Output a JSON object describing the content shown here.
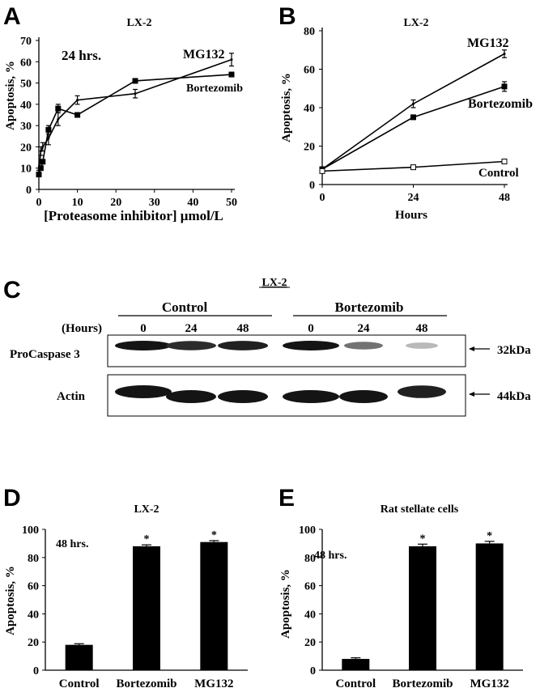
{
  "panels": {
    "A": {
      "letter": "A",
      "title": "LX-2",
      "time_label": "24 hrs."
    },
    "B": {
      "letter": "B",
      "title": "LX-2"
    },
    "C": {
      "letter": "C",
      "title": "LX-2",
      "group_labels": [
        "Control",
        "Bortezomib"
      ],
      "hours_label": "(Hours)",
      "lane_hours": [
        "0",
        "24",
        "48",
        "0",
        "24",
        "48"
      ],
      "rows": [
        {
          "label": "ProCaspase 3",
          "size": "32kDa",
          "intensity": [
            1.0,
            0.9,
            0.95,
            1.0,
            0.6,
            0.3
          ]
        },
        {
          "label": "Actin",
          "size": "44kDa",
          "intensity": [
            1.0,
            1.0,
            1.0,
            1.0,
            1.0,
            0.95
          ]
        }
      ]
    },
    "D": {
      "letter": "D",
      "title": "LX-2",
      "time_label": "48 hrs."
    },
    "E": {
      "letter": "E",
      "title": "Rat stellate cells",
      "time_label": "48 hrs."
    }
  },
  "chart_data": [
    {
      "id": "A",
      "type": "line",
      "title": "LX-2",
      "xlabel": "[Proteasome inhibitor] μmol/L",
      "ylabel": "Apoptosis, %",
      "xlim": [
        0,
        50
      ],
      "ylim": [
        0,
        70
      ],
      "xticks": [
        0,
        10,
        20,
        30,
        40,
        50
      ],
      "yticks": [
        0,
        10,
        20,
        30,
        40,
        50,
        60,
        70
      ],
      "series": [
        {
          "name": "MG132",
          "marker": "line",
          "x": [
            0,
            0.5,
            1,
            2.5,
            5,
            10,
            25,
            50
          ],
          "y": [
            8,
            18,
            20,
            24,
            33,
            42,
            45,
            61
          ],
          "err": [
            1,
            2,
            2,
            3,
            3,
            2,
            2,
            3
          ]
        },
        {
          "name": "Bortezomib",
          "marker": "square",
          "x": [
            0,
            0.5,
            1,
            2.5,
            5,
            10,
            25,
            50
          ],
          "y": [
            7,
            10,
            13,
            28,
            38,
            35,
            51,
            54
          ],
          "err": [
            1,
            1,
            1,
            2,
            2,
            1,
            1,
            1
          ]
        }
      ]
    },
    {
      "id": "B",
      "type": "line",
      "title": "LX-2",
      "xlabel": "Hours",
      "ylabel": "Apoptosis, %",
      "xlim": [
        0,
        48
      ],
      "ylim": [
        0,
        80
      ],
      "xticks": [
        0,
        24,
        48
      ],
      "yticks": [
        0,
        20,
        40,
        60,
        80
      ],
      "series": [
        {
          "name": "MG132",
          "marker": "line",
          "x": [
            0,
            24,
            48
          ],
          "y": [
            8,
            42,
            68
          ],
          "err": [
            1,
            2,
            2
          ]
        },
        {
          "name": "Bortezomib",
          "marker": "square",
          "x": [
            0,
            24,
            48
          ],
          "y": [
            8,
            35,
            51
          ],
          "err": [
            1,
            1,
            2.5
          ]
        },
        {
          "name": "Control",
          "marker": "open",
          "x": [
            0,
            24,
            48
          ],
          "y": [
            7,
            9,
            12
          ],
          "err": [
            0.5,
            1,
            0.5
          ]
        }
      ]
    },
    {
      "id": "D",
      "type": "bar",
      "title": "LX-2",
      "ylabel": "Apoptosis, %",
      "ylim": [
        0,
        100
      ],
      "yticks": [
        0,
        20,
        40,
        60,
        80,
        100
      ],
      "categories": [
        "Control",
        "Bortezomib",
        "MG132"
      ],
      "values": [
        18,
        88,
        91
      ],
      "err": [
        0.8,
        1,
        1
      ],
      "significance": [
        "",
        "*",
        "*"
      ]
    },
    {
      "id": "E",
      "type": "bar",
      "title": "Rat stellate cells",
      "ylabel": "Apoptosis, %",
      "ylim": [
        0,
        100
      ],
      "yticks": [
        0,
        20,
        40,
        60,
        80,
        100
      ],
      "categories": [
        "Control",
        "Bortezomib",
        "MG132"
      ],
      "values": [
        8,
        88,
        90
      ],
      "err": [
        0.8,
        1.5,
        1.5
      ],
      "significance": [
        "",
        "*",
        "*"
      ]
    }
  ]
}
